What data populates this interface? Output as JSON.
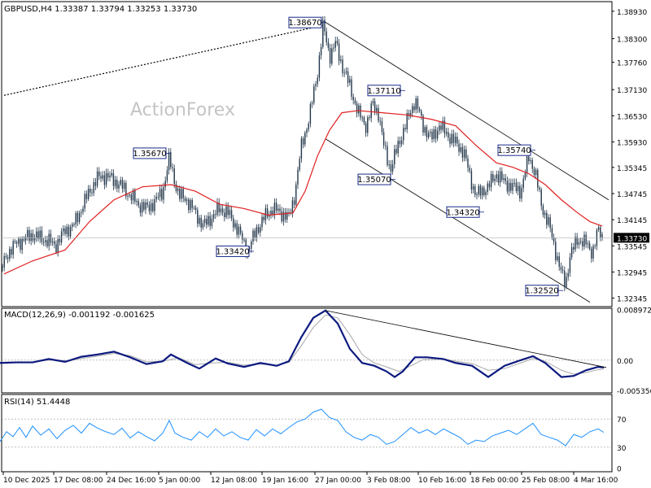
{
  "chart_data": [
    {
      "type": "candlestick",
      "symbol_label": "GBPUSD,H4",
      "ohlc_label": "1.33387 1.33794 1.33253 1.33730",
      "watermark": "ActionForex",
      "ylim": [
        1.3215,
        1.3915
      ],
      "y_ticks": [
        "1.38930",
        "1.38300",
        "1.37760",
        "1.37130",
        "1.36530",
        "1.35930",
        "1.35345",
        "1.34745",
        "1.34145",
        "1.33545",
        "1.32945",
        "1.32345"
      ],
      "current_price": "1.33730",
      "x_ticks": [
        "10 Dec 2025",
        "17 Dec 08:00",
        "24 Dec 16:00",
        "5 Jan 00:00",
        "12 Jan 08:00",
        "19 Jan 16:00",
        "27 Jan 00:00",
        "3 Feb 08:00",
        "10 Feb 16:00",
        "18 Feb 00:00",
        "25 Feb 08:00",
        "4 Mar 16:00"
      ],
      "price_path": [
        [
          0,
          1.3295
        ],
        [
          10,
          1.334
        ],
        [
          20,
          1.336
        ],
        [
          30,
          1.337
        ],
        [
          40,
          1.338
        ],
        [
          50,
          1.3372
        ],
        [
          60,
          1.3365
        ],
        [
          68,
          1.3355
        ],
        [
          80,
          1.339
        ],
        [
          90,
          1.34
        ],
        [
          100,
          1.344
        ],
        [
          110,
          1.348
        ],
        [
          120,
          1.351
        ],
        [
          130,
          1.3515
        ],
        [
          140,
          1.3505
        ],
        [
          150,
          1.349
        ],
        [
          160,
          1.347
        ],
        [
          170,
          1.345
        ],
        [
          180,
          1.344
        ],
        [
          190,
          1.3455
        ],
        [
          200,
          1.348
        ],
        [
          208,
          1.3555
        ],
        [
          215,
          1.35
        ],
        [
          220,
          1.347
        ],
        [
          230,
          1.346
        ],
        [
          240,
          1.343
        ],
        [
          250,
          1.34
        ],
        [
          260,
          1.342
        ],
        [
          270,
          1.344
        ],
        [
          280,
          1.343
        ],
        [
          290,
          1.34
        ],
        [
          300,
          1.336
        ],
        [
          305,
          1.3345
        ],
        [
          315,
          1.339
        ],
        [
          325,
          1.342
        ],
        [
          335,
          1.344
        ],
        [
          345,
          1.343
        ],
        [
          355,
          1.342
        ],
        [
          362,
          1.347
        ],
        [
          370,
          1.358
        ],
        [
          380,
          1.365
        ],
        [
          390,
          1.375
        ],
        [
          397,
          1.386
        ],
        [
          405,
          1.379
        ],
        [
          412,
          1.382
        ],
        [
          420,
          1.377
        ],
        [
          430,
          1.372
        ],
        [
          440,
          1.366
        ],
        [
          450,
          1.363
        ],
        [
          458,
          1.368
        ],
        [
          465,
          1.366
        ],
        [
          472,
          1.358
        ],
        [
          480,
          1.353
        ],
        [
          490,
          1.359
        ],
        [
          500,
          1.364
        ],
        [
          510,
          1.369
        ],
        [
          520,
          1.363
        ],
        [
          530,
          1.36
        ],
        [
          540,
          1.363
        ],
        [
          550,
          1.361
        ],
        [
          560,
          1.359
        ],
        [
          570,
          1.357
        ],
        [
          578,
          1.351
        ],
        [
          585,
          1.347
        ],
        [
          592,
          1.348
        ],
        [
          600,
          1.349
        ],
        [
          610,
          1.352
        ],
        [
          620,
          1.35
        ],
        [
          630,
          1.349
        ],
        [
          640,
          1.348
        ],
        [
          650,
          1.356
        ],
        [
          658,
          1.352
        ],
        [
          665,
          1.345
        ],
        [
          675,
          1.34
        ],
        [
          683,
          1.334
        ],
        [
          690,
          1.329
        ],
        [
          695,
          1.3265
        ],
        [
          700,
          1.333
        ],
        [
          710,
          1.337
        ],
        [
          720,
          1.336
        ],
        [
          728,
          1.334
        ],
        [
          735,
          1.339
        ],
        [
          741,
          1.3373
        ]
      ],
      "moving_average": [
        [
          5,
          1.329
        ],
        [
          40,
          1.332
        ],
        [
          80,
          1.3345
        ],
        [
          110,
          1.341
        ],
        [
          140,
          1.346
        ],
        [
          175,
          1.349
        ],
        [
          210,
          1.3495
        ],
        [
          240,
          1.348
        ],
        [
          270,
          1.345
        ],
        [
          300,
          1.344
        ],
        [
          330,
          1.3425
        ],
        [
          360,
          1.343
        ],
        [
          375,
          1.348
        ],
        [
          390,
          1.356
        ],
        [
          405,
          1.362
        ],
        [
          420,
          1.366
        ],
        [
          440,
          1.3665
        ],
        [
          470,
          1.366
        ],
        [
          500,
          1.3655
        ],
        [
          530,
          1.3645
        ],
        [
          560,
          1.363
        ],
        [
          585,
          1.3585
        ],
        [
          610,
          1.3545
        ],
        [
          630,
          1.3535
        ],
        [
          650,
          1.352
        ],
        [
          670,
          1.3495
        ],
        [
          690,
          1.346
        ],
        [
          710,
          1.343
        ],
        [
          725,
          1.341
        ],
        [
          740,
          1.34
        ]
      ],
      "trend_lines": [
        {
          "style": "dotted",
          "from": [
            5,
            1.37
          ],
          "to": [
            396,
            1.386
          ]
        },
        {
          "style": "solid",
          "from": [
            398,
            1.387
          ],
          "to": [
            748,
            1.346
          ]
        },
        {
          "style": "solid",
          "from": [
            400,
            1.36
          ],
          "to": [
            725,
            1.3225
          ]
        }
      ],
      "annotations": [
        {
          "label": "1.38670",
          "x": 397,
          "price": 1.3867
        },
        {
          "label": "1.37110",
          "x": 494,
          "price": 1.3711
        },
        {
          "label": "1.35670",
          "x": 206,
          "price": 1.3567
        },
        {
          "label": "1.35740",
          "x": 654,
          "price": 1.3574
        },
        {
          "label": "1.35070",
          "x": 482,
          "price": 1.3507
        },
        {
          "label": "1.34320",
          "x": 591,
          "price": 1.3432
        },
        {
          "label": "1.33420",
          "x": 308,
          "price": 1.3342
        },
        {
          "label": "1.32520",
          "x": 688,
          "price": 1.3252
        }
      ]
    },
    {
      "type": "line",
      "label": "MACD(12,26,9) -0.001192 -0.001625",
      "ylim": [
        -0.0058,
        0.0092
      ],
      "y_ticks": [
        "0.008972",
        "0.00",
        "-0.005356"
      ],
      "current_value": "0.00",
      "macd": [
        [
          0,
          -0.0005
        ],
        [
          20,
          -0.0004
        ],
        [
          40,
          -0.0004
        ],
        [
          60,
          0.0002
        ],
        [
          80,
          -0.0003
        ],
        [
          100,
          0.0006
        ],
        [
          120,
          0.001
        ],
        [
          140,
          0.0015
        ],
        [
          160,
          0.0005
        ],
        [
          180,
          -0.0007
        ],
        [
          200,
          -0.0002
        ],
        [
          210,
          0.001
        ],
        [
          230,
          -0.0005
        ],
        [
          245,
          -0.0015
        ],
        [
          265,
          0.0003
        ],
        [
          280,
          -0.0006
        ],
        [
          300,
          -0.0012
        ],
        [
          320,
          -0.0005
        ],
        [
          340,
          -0.001
        ],
        [
          355,
          -0.0002
        ],
        [
          370,
          0.004
        ],
        [
          385,
          0.0075
        ],
        [
          400,
          0.0088
        ],
        [
          415,
          0.0065
        ],
        [
          430,
          0.002
        ],
        [
          445,
          -0.0005
        ],
        [
          460,
          -0.001
        ],
        [
          475,
          -0.002
        ],
        [
          485,
          -0.003
        ],
        [
          495,
          -0.002
        ],
        [
          510,
          0.0005
        ],
        [
          525,
          0.0005
        ],
        [
          545,
          0.0002
        ],
        [
          560,
          -0.0005
        ],
        [
          580,
          -0.001
        ],
        [
          600,
          -0.003
        ],
        [
          620,
          -0.001
        ],
        [
          640,
          0.0
        ],
        [
          655,
          0.0007
        ],
        [
          670,
          -0.0005
        ],
        [
          690,
          -0.003
        ],
        [
          705,
          -0.0028
        ],
        [
          720,
          -0.0018
        ],
        [
          735,
          -0.0012
        ],
        [
          742,
          -0.0013
        ]
      ],
      "signal": [
        [
          0,
          -0.0004
        ],
        [
          20,
          -0.0003
        ],
        [
          40,
          -0.0003
        ],
        [
          60,
          0.0
        ],
        [
          80,
          -0.0001
        ],
        [
          100,
          0.0003
        ],
        [
          120,
          0.0007
        ],
        [
          140,
          0.0012
        ],
        [
          160,
          0.0008
        ],
        [
          180,
          -0.0003
        ],
        [
          200,
          -0.0002
        ],
        [
          220,
          0.0004
        ],
        [
          240,
          -0.0008
        ],
        [
          260,
          -0.0005
        ],
        [
          280,
          -0.0004
        ],
        [
          300,
          -0.0009
        ],
        [
          320,
          -0.0007
        ],
        [
          340,
          -0.0009
        ],
        [
          355,
          -0.0004
        ],
        [
          370,
          0.0025
        ],
        [
          385,
          0.0058
        ],
        [
          400,
          0.008
        ],
        [
          415,
          0.0075
        ],
        [
          430,
          0.0045
        ],
        [
          445,
          0.001
        ],
        [
          460,
          -0.0005
        ],
        [
          475,
          -0.0012
        ],
        [
          490,
          -0.002
        ],
        [
          505,
          -0.001
        ],
        [
          520,
          0.0001
        ],
        [
          545,
          0.0002
        ],
        [
          560,
          -0.0002
        ],
        [
          580,
          -0.0006
        ],
        [
          600,
          -0.0018
        ],
        [
          620,
          -0.0015
        ],
        [
          640,
          -0.0005
        ],
        [
          655,
          0.0003
        ],
        [
          670,
          -0.0002
        ],
        [
          690,
          -0.0018
        ],
        [
          705,
          -0.0025
        ],
        [
          720,
          -0.0022
        ],
        [
          735,
          -0.0017
        ],
        [
          742,
          -0.0016
        ]
      ],
      "trend_line": {
        "from": [
          400,
          0.0088
        ],
        "to": [
          745,
          -0.0013
        ]
      }
    },
    {
      "type": "line",
      "label": "RSI(14) 51.4448",
      "ylim": [
        -5,
        105
      ],
      "y_ticks": [
        "70",
        "30",
        "0"
      ],
      "levels": [
        70,
        30
      ],
      "rsi": [
        [
          0,
          38
        ],
        [
          8,
          52
        ],
        [
          16,
          45
        ],
        [
          24,
          58
        ],
        [
          32,
          44
        ],
        [
          40,
          60
        ],
        [
          50,
          47
        ],
        [
          60,
          56
        ],
        [
          70,
          42
        ],
        [
          80,
          54
        ],
        [
          90,
          61
        ],
        [
          100,
          50
        ],
        [
          110,
          64
        ],
        [
          120,
          57
        ],
        [
          130,
          52
        ],
        [
          140,
          48
        ],
        [
          150,
          57
        ],
        [
          160,
          43
        ],
        [
          170,
          52
        ],
        [
          180,
          45
        ],
        [
          190,
          39
        ],
        [
          200,
          50
        ],
        [
          208,
          68
        ],
        [
          215,
          50
        ],
        [
          225,
          44
        ],
        [
          235,
          40
        ],
        [
          245,
          52
        ],
        [
          255,
          44
        ],
        [
          265,
          56
        ],
        [
          275,
          46
        ],
        [
          285,
          52
        ],
        [
          295,
          44
        ],
        [
          305,
          40
        ],
        [
          315,
          55
        ],
        [
          325,
          46
        ],
        [
          335,
          56
        ],
        [
          345,
          49
        ],
        [
          355,
          58
        ],
        [
          365,
          66
        ],
        [
          375,
          70
        ],
        [
          385,
          80
        ],
        [
          395,
          84
        ],
        [
          405,
          72
        ],
        [
          415,
          68
        ],
        [
          425,
          52
        ],
        [
          435,
          44
        ],
        [
          445,
          40
        ],
        [
          455,
          48
        ],
        [
          465,
          44
        ],
        [
          475,
          34
        ],
        [
          485,
          38
        ],
        [
          495,
          48
        ],
        [
          505,
          58
        ],
        [
          515,
          50
        ],
        [
          525,
          55
        ],
        [
          535,
          48
        ],
        [
          545,
          56
        ],
        [
          555,
          50
        ],
        [
          565,
          44
        ],
        [
          575,
          34
        ],
        [
          585,
          40
        ],
        [
          595,
          38
        ],
        [
          605,
          46
        ],
        [
          615,
          50
        ],
        [
          625,
          54
        ],
        [
          635,
          48
        ],
        [
          645,
          56
        ],
        [
          655,
          64
        ],
        [
          665,
          48
        ],
        [
          675,
          44
        ],
        [
          685,
          40
        ],
        [
          695,
          32
        ],
        [
          705,
          48
        ],
        [
          715,
          44
        ],
        [
          725,
          52
        ],
        [
          735,
          56
        ],
        [
          742,
          51
        ]
      ]
    }
  ]
}
